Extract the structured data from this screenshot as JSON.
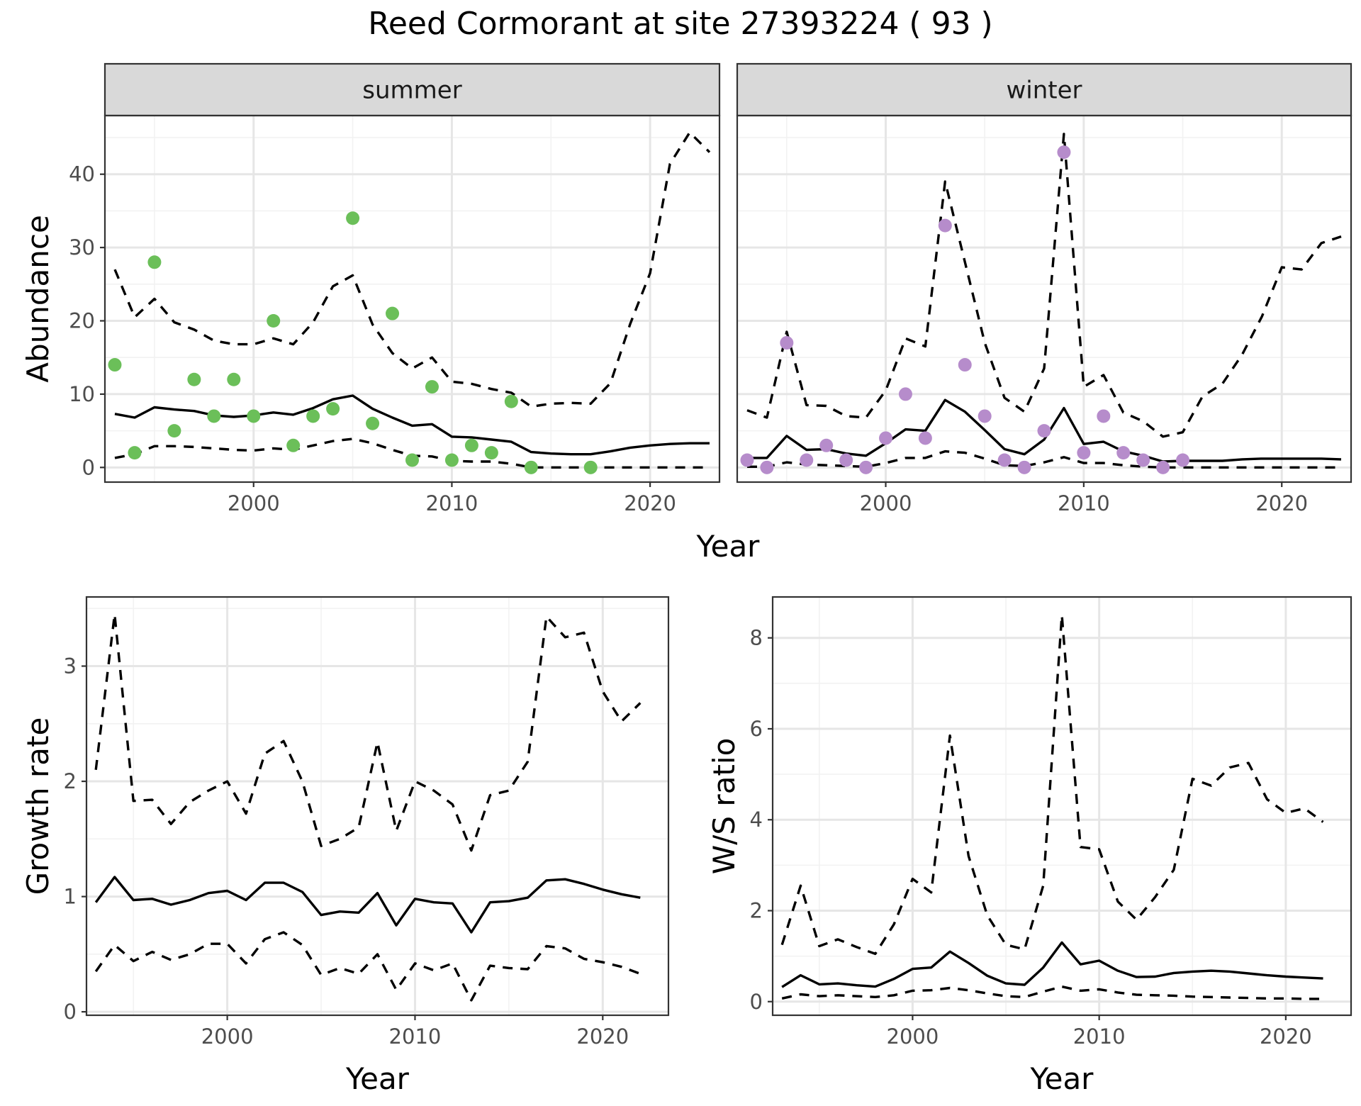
{
  "title": "Reed Cormorant at site 27393224 ( 93 )",
  "colors": {
    "summer_points": "#6bbf59",
    "winter_points": "#b68ccb",
    "lines": "#000000",
    "strip": "#d9d9d9"
  },
  "chart_data": [
    {
      "type": "line",
      "panel": "summer",
      "strip_label": "summer",
      "xlabel": "Year",
      "ylabel": "Abundance",
      "xlim": [
        1992.5,
        2023.5
      ],
      "ylim": [
        -2,
        48
      ],
      "x_ticks": [
        2000,
        2010,
        2020
      ],
      "y_ticks": [
        0,
        10,
        20,
        30,
        40
      ],
      "grid": true,
      "points": {
        "x": [
          1993,
          1994,
          1995,
          1996,
          1997,
          1998,
          1999,
          2000,
          2001,
          2002,
          2003,
          2004,
          2005,
          2006,
          2007,
          2008,
          2009,
          2010,
          2011,
          2012,
          2013,
          2014,
          2017
        ],
        "y": [
          14,
          2,
          28,
          5,
          12,
          7,
          12,
          7,
          20,
          3,
          7,
          8,
          34,
          6,
          21,
          1,
          11,
          1,
          3,
          2,
          9,
          0,
          0
        ]
      },
      "x": [
        1993,
        1994,
        1995,
        1996,
        1997,
        1998,
        1999,
        2000,
        2001,
        2002,
        2003,
        2004,
        2005,
        2006,
        2007,
        2008,
        2009,
        2010,
        2011,
        2012,
        2013,
        2014,
        2015,
        2016,
        2017,
        2018,
        2019,
        2020,
        2021,
        2022,
        2023
      ],
      "series": [
        {
          "style": "solid",
          "values": [
            7.3,
            6.8,
            8.2,
            7.9,
            7.7,
            7.1,
            6.9,
            7.1,
            7.5,
            7.2,
            8.1,
            9.3,
            9.8,
            8.0,
            6.8,
            5.7,
            5.9,
            4.2,
            4.1,
            3.8,
            3.5,
            2.1,
            1.9,
            1.8,
            1.8,
            2.2,
            2.7,
            3.0,
            3.2,
            3.3,
            3.3
          ]
        },
        {
          "style": "dashed",
          "values": [
            27.0,
            20.5,
            23.0,
            19.8,
            18.8,
            17.3,
            16.8,
            16.8,
            17.6,
            16.8,
            19.8,
            24.7,
            26.2,
            19.5,
            15.6,
            13.5,
            15.0,
            11.7,
            11.4,
            10.7,
            10.2,
            8.3,
            8.7,
            8.8,
            8.7,
            11.5,
            19.6,
            26.5,
            41.4,
            45.7,
            43.0
          ]
        },
        {
          "style": "dashed",
          "values": [
            1.3,
            1.8,
            2.9,
            2.9,
            2.8,
            2.6,
            2.4,
            2.3,
            2.6,
            2.4,
            3.0,
            3.6,
            3.9,
            3.3,
            2.4,
            1.6,
            1.5,
            0.9,
            0.8,
            0.8,
            0.5,
            0.0,
            0.0,
            0.0,
            0.0,
            0.0,
            0.0,
            0.0,
            0.0,
            0.0,
            0.0
          ]
        }
      ]
    },
    {
      "type": "line",
      "panel": "winter",
      "strip_label": "winter",
      "xlabel": "Year",
      "ylabel": "",
      "xlim": [
        1992.5,
        2023.5
      ],
      "ylim": [
        -2,
        48
      ],
      "x_ticks": [
        2000,
        2010,
        2020
      ],
      "y_ticks": [
        0,
        10,
        20,
        30,
        40
      ],
      "grid": true,
      "points": {
        "x": [
          1993,
          1994,
          1995,
          1996,
          1997,
          1998,
          1999,
          2000,
          2001,
          2002,
          2003,
          2004,
          2005,
          2006,
          2007,
          2008,
          2009,
          2010,
          2011,
          2012,
          2013,
          2014,
          2015
        ],
        "y": [
          1,
          0,
          17,
          1,
          3,
          1,
          0,
          4,
          10,
          4,
          33,
          14,
          7,
          1,
          0,
          5,
          43,
          2,
          7,
          2,
          1,
          0,
          1
        ]
      },
      "x": [
        1993,
        1994,
        1995,
        1996,
        1997,
        1998,
        1999,
        2000,
        2001,
        2002,
        2003,
        2004,
        2005,
        2006,
        2007,
        2008,
        2009,
        2010,
        2011,
        2012,
        2013,
        2014,
        2015,
        2016,
        2017,
        2018,
        2019,
        2020,
        2021,
        2022,
        2023
      ],
      "series": [
        {
          "style": "solid",
          "values": [
            1.3,
            1.3,
            4.3,
            2.4,
            2.5,
            1.9,
            1.6,
            3.3,
            5.2,
            5.0,
            9.2,
            7.6,
            5.1,
            2.5,
            1.8,
            3.8,
            8.1,
            3.2,
            3.5,
            2.2,
            1.6,
            0.8,
            0.9,
            0.9,
            0.9,
            1.1,
            1.2,
            1.2,
            1.2,
            1.2,
            1.1
          ]
        },
        {
          "style": "dashed",
          "values": [
            7.8,
            6.8,
            18.5,
            8.5,
            8.4,
            7.0,
            6.8,
            10.5,
            17.6,
            16.5,
            39.0,
            28.0,
            17.0,
            9.5,
            7.6,
            13.5,
            45.5,
            11.0,
            12.6,
            7.5,
            6.3,
            4.2,
            4.8,
            9.7,
            11.4,
            15.4,
            20.6,
            27.3,
            27.0,
            30.6,
            31.5
          ]
        },
        {
          "style": "dashed",
          "values": [
            0.1,
            0.1,
            0.7,
            0.4,
            0.3,
            0.2,
            0.1,
            0.6,
            1.3,
            1.3,
            2.2,
            2.0,
            1.2,
            0.3,
            0.2,
            0.7,
            1.4,
            0.6,
            0.6,
            0.3,
            0.1,
            0.0,
            0.0,
            0.0,
            0.0,
            0.0,
            0.0,
            0.0,
            0.0,
            0.0,
            0.0
          ]
        }
      ]
    },
    {
      "type": "line",
      "panel": "growth",
      "xlabel": "Year",
      "ylabel": "Growth rate",
      "xlim": [
        1992.5,
        2023.5
      ],
      "ylim": [
        -0.03,
        3.6
      ],
      "x_ticks": [
        2000,
        2010,
        2020
      ],
      "y_ticks": [
        0,
        1,
        2,
        3
      ],
      "grid": true,
      "x": [
        1993,
        1994,
        1995,
        1996,
        1997,
        1998,
        1999,
        2000,
        2001,
        2002,
        2003,
        2004,
        2005,
        2006,
        2007,
        2008,
        2009,
        2010,
        2011,
        2012,
        2013,
        2014,
        2015,
        2016,
        2017,
        2018,
        2019,
        2020,
        2021,
        2022
      ],
      "series": [
        {
          "style": "solid",
          "values": [
            0.95,
            1.17,
            0.97,
            0.98,
            0.93,
            0.97,
            1.03,
            1.05,
            0.97,
            1.12,
            1.12,
            1.04,
            0.84,
            0.87,
            0.86,
            1.03,
            0.75,
            0.98,
            0.95,
            0.94,
            0.69,
            0.95,
            0.96,
            0.99,
            1.14,
            1.15,
            1.11,
            1.06,
            1.02,
            0.99
          ]
        },
        {
          "style": "dashed",
          "values": [
            2.1,
            3.45,
            1.83,
            1.84,
            1.63,
            1.82,
            1.92,
            2.0,
            1.72,
            2.24,
            2.35,
            2.0,
            1.44,
            1.5,
            1.6,
            2.34,
            1.57,
            2.0,
            1.92,
            1.8,
            1.4,
            1.88,
            1.92,
            2.17,
            3.43,
            3.25,
            3.29,
            2.78,
            2.52,
            2.68
          ]
        },
        {
          "style": "dashed",
          "values": [
            0.35,
            0.58,
            0.44,
            0.52,
            0.45,
            0.5,
            0.59,
            0.59,
            0.42,
            0.63,
            0.69,
            0.58,
            0.32,
            0.38,
            0.33,
            0.5,
            0.19,
            0.42,
            0.36,
            0.42,
            0.1,
            0.4,
            0.38,
            0.37,
            0.57,
            0.55,
            0.46,
            0.43,
            0.39,
            0.33
          ]
        }
      ]
    },
    {
      "type": "line",
      "panel": "ratio",
      "xlabel": "Year",
      "ylabel": "W/S ratio",
      "xlim": [
        1992.5,
        2023.5
      ],
      "ylim": [
        -0.3,
        8.9
      ],
      "x_ticks": [
        2000,
        2010,
        2020
      ],
      "y_ticks": [
        0,
        2,
        4,
        6,
        8
      ],
      "grid": true,
      "x": [
        1993,
        1994,
        1995,
        1996,
        1997,
        1998,
        1999,
        2000,
        2001,
        2002,
        2003,
        2004,
        2005,
        2006,
        2007,
        2008,
        2009,
        2010,
        2011,
        2012,
        2013,
        2014,
        2015,
        2016,
        2017,
        2018,
        2019,
        2020,
        2021,
        2022
      ],
      "series": [
        {
          "style": "solid",
          "values": [
            0.32,
            0.58,
            0.38,
            0.4,
            0.36,
            0.33,
            0.5,
            0.72,
            0.75,
            1.1,
            0.85,
            0.57,
            0.4,
            0.37,
            0.75,
            1.3,
            0.82,
            0.9,
            0.68,
            0.54,
            0.55,
            0.63,
            0.66,
            0.68,
            0.66,
            0.62,
            0.58,
            0.55,
            0.53,
            0.51
          ]
        },
        {
          "style": "dashed",
          "values": [
            1.25,
            2.55,
            1.22,
            1.37,
            1.2,
            1.05,
            1.7,
            2.7,
            2.4,
            5.85,
            3.2,
            1.9,
            1.25,
            1.15,
            2.55,
            8.5,
            3.4,
            3.35,
            2.2,
            1.8,
            2.3,
            2.9,
            4.9,
            4.75,
            5.15,
            5.25,
            4.45,
            4.15,
            4.25,
            3.95
          ]
        },
        {
          "style": "dashed",
          "values": [
            0.07,
            0.16,
            0.12,
            0.14,
            0.12,
            0.1,
            0.14,
            0.24,
            0.25,
            0.3,
            0.25,
            0.18,
            0.12,
            0.1,
            0.22,
            0.33,
            0.24,
            0.27,
            0.2,
            0.15,
            0.14,
            0.13,
            0.11,
            0.1,
            0.09,
            0.08,
            0.07,
            0.07,
            0.06,
            0.06
          ]
        }
      ]
    }
  ]
}
